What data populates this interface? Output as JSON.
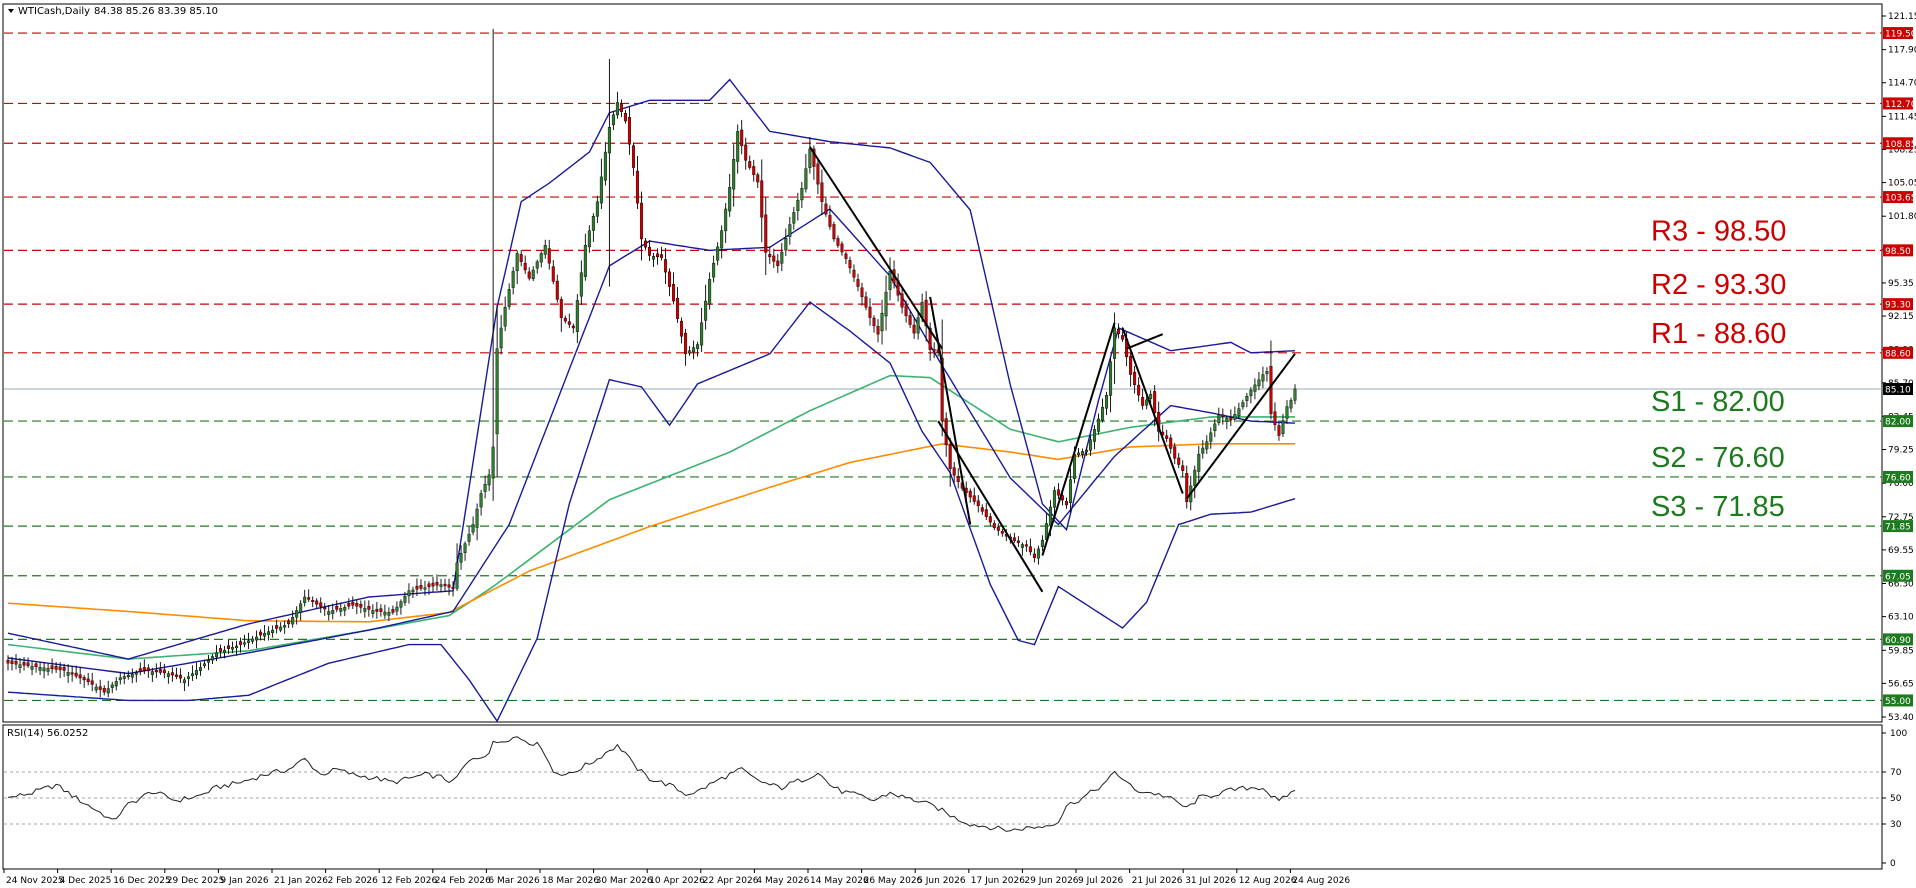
{
  "header": {
    "symbol": "WTICash,Daily",
    "ohlc": "84.38 85.26 83.39 85.10",
    "rsi_label": "RSI(14) 56.0252"
  },
  "colors": {
    "bull": "#2e7d2e",
    "bear": "#cc0000",
    "bollinger": "#1a1a99",
    "ma_green": "#3cb371",
    "ma_orange": "#ff8c00",
    "resistance": "#cc0000",
    "support": "#1e7a1e",
    "current": "#000000"
  },
  "chart_data": {
    "type": "candlestick",
    "ylim": [
      53.4,
      121.15
    ],
    "price_ticks": [
      "121.15",
      "117.90",
      "114.70",
      "111.45",
      "108.25",
      "105.05",
      "101.80",
      "98.55",
      "95.35",
      "92.15",
      "88.90",
      "85.70",
      "82.45",
      "79.25",
      "76.00",
      "72.75",
      "69.55",
      "66.30",
      "63.10",
      "59.85",
      "56.65",
      "53.40"
    ],
    "x_labels": [
      "24 Nov 2025",
      "4 Dec 2025",
      "16 Dec 2025",
      "29 Dec 2025",
      "9 Jan 2026",
      "21 Jan 2026",
      "2 Feb 2026",
      "12 Feb 2026",
      "24 Feb 2026",
      "6 Mar 2026",
      "18 Mar 2026",
      "30 Mar 2026",
      "10 Apr 2026",
      "22 Apr 2026",
      "4 May 2026",
      "14 May 2026",
      "26 May 2026",
      "5 Jun 2026",
      "17 Jun 2026",
      "29 Jun 2026",
      "9 Jul 2026",
      "21 Jul 2026",
      "31 Jul 2026",
      "12 Aug 2026",
      "24 Aug 2026"
    ],
    "current_price": "85.10",
    "levels": [
      {
        "price": 119.5,
        "label": "119.50",
        "kind": "resistance",
        "name": ""
      },
      {
        "price": 112.7,
        "label": "112.70",
        "kind": "resistance",
        "name": ""
      },
      {
        "price": 108.85,
        "label": "108.85",
        "kind": "resistance",
        "name": ""
      },
      {
        "price": 103.65,
        "label": "103.65",
        "kind": "resistance",
        "name": ""
      },
      {
        "price": 98.5,
        "label": "98.50",
        "kind": "resistance",
        "name": "R3 - 98.50"
      },
      {
        "price": 93.3,
        "label": "93.30",
        "kind": "resistance",
        "name": "R2 - 93.30"
      },
      {
        "price": 88.6,
        "label": "88.60",
        "kind": "resistance",
        "name": "R1 - 88.60"
      },
      {
        "price": 82.0,
        "label": "82.00",
        "kind": "support",
        "name": "S1 - 82.00"
      },
      {
        "price": 76.6,
        "label": "76.60",
        "kind": "support",
        "name": "S2 - 76.60"
      },
      {
        "price": 71.85,
        "label": "71.85",
        "kind": "support",
        "name": "S3 - 71.85"
      },
      {
        "price": 67.05,
        "label": "67.05",
        "kind": "support",
        "name": ""
      },
      {
        "price": 60.9,
        "label": "60.90",
        "kind": "support",
        "name": ""
      },
      {
        "price": 55.0,
        "label": "55.00",
        "kind": "support",
        "name": ""
      }
    ],
    "close_anchors": [
      [
        0,
        58.6
      ],
      [
        4,
        58.4
      ],
      [
        8,
        58.2
      ],
      [
        14,
        57.9
      ],
      [
        20,
        56.8
      ],
      [
        24,
        55.8
      ],
      [
        28,
        57.2
      ],
      [
        34,
        57.9
      ],
      [
        40,
        57.6
      ],
      [
        44,
        57.0
      ],
      [
        48,
        58.2
      ],
      [
        52,
        59.6
      ],
      [
        58,
        60.4
      ],
      [
        64,
        61.5
      ],
      [
        70,
        62.4
      ],
      [
        74,
        65.0
      ],
      [
        80,
        63.6
      ],
      [
        86,
        64.2
      ],
      [
        92,
        63.6
      ],
      [
        96,
        63.5
      ],
      [
        100,
        65.6
      ],
      [
        104,
        65.9
      ],
      [
        108,
        66.2
      ],
      [
        111,
        65.8
      ],
      [
        112,
        68.3
      ],
      [
        116,
        72.0
      ],
      [
        118,
        75.0
      ],
      [
        120,
        76.8
      ],
      [
        121,
        79.5
      ],
      [
        122,
        89.0
      ],
      [
        124,
        93.0
      ],
      [
        127,
        98.2
      ],
      [
        130,
        95.8
      ],
      [
        134,
        99.0
      ],
      [
        138,
        92.0
      ],
      [
        141,
        91.0
      ],
      [
        144,
        99.0
      ],
      [
        147,
        103.2
      ],
      [
        150,
        110.4
      ],
      [
        152,
        112.8
      ],
      [
        154,
        111.0
      ],
      [
        156,
        106.5
      ],
      [
        158,
        99.6
      ],
      [
        160,
        98.0
      ],
      [
        163,
        97.8
      ],
      [
        166,
        93.6
      ],
      [
        169,
        88.5
      ],
      [
        172,
        89.4
      ],
      [
        175,
        95.7
      ],
      [
        178,
        100.4
      ],
      [
        180,
        104.6
      ],
      [
        182,
        110.0
      ],
      [
        184,
        107.2
      ],
      [
        187,
        105.1
      ],
      [
        189,
        98.3
      ],
      [
        192,
        97.0
      ],
      [
        195,
        101.0
      ],
      [
        198,
        104.5
      ],
      [
        200,
        108.3
      ],
      [
        203,
        103.2
      ],
      [
        206,
        99.6
      ],
      [
        209,
        97.7
      ],
      [
        212,
        95.0
      ],
      [
        215,
        92.0
      ],
      [
        217,
        90.4
      ],
      [
        220,
        96.5
      ],
      [
        223,
        93.0
      ],
      [
        226,
        90.5
      ],
      [
        228,
        93.5
      ],
      [
        230,
        88.9
      ],
      [
        232,
        88.6
      ],
      [
        233,
        82.0
      ],
      [
        235,
        77.4
      ],
      [
        238,
        75.5
      ],
      [
        242,
        73.8
      ],
      [
        246,
        71.7
      ],
      [
        250,
        70.6
      ],
      [
        254,
        69.9
      ],
      [
        256,
        68.8
      ],
      [
        258,
        70.5
      ],
      [
        261,
        75.3
      ],
      [
        264,
        73.9
      ],
      [
        266,
        78.8
      ],
      [
        269,
        79.2
      ],
      [
        272,
        82.2
      ],
      [
        274,
        84.5
      ],
      [
        276,
        91.0
      ],
      [
        278,
        89.9
      ],
      [
        280,
        86.5
      ],
      [
        283,
        83.5
      ],
      [
        285,
        84.6
      ],
      [
        287,
        81.0
      ],
      [
        289,
        80.3
      ],
      [
        291,
        78.4
      ],
      [
        293,
        77.2
      ],
      [
        294,
        74.2
      ],
      [
        297,
        78.8
      ],
      [
        299,
        80.0
      ],
      [
        302,
        82.6
      ],
      [
        305,
        82.1
      ],
      [
        307,
        83.2
      ],
      [
        310,
        85.0
      ],
      [
        313,
        86.5
      ],
      [
        314,
        86.8
      ],
      [
        315,
        82.7
      ],
      [
        317,
        80.6
      ],
      [
        319,
        83.4
      ],
      [
        320,
        84.0
      ],
      [
        321,
        85.1
      ]
    ],
    "spikes": [
      [
        121,
        119.9,
        74.3
      ],
      [
        150,
        117.0,
        95.0
      ]
    ],
    "indicator_defs": [
      {
        "name": "ma_green",
        "anchors": [
          [
            0,
            60.4
          ],
          [
            30,
            59.0
          ],
          [
            60,
            59.8
          ],
          [
            90,
            61.8
          ],
          [
            110,
            63.2
          ],
          [
            121,
            66.0
          ],
          [
            150,
            74.4
          ],
          [
            180,
            79.0
          ],
          [
            200,
            83.0
          ],
          [
            220,
            86.4
          ],
          [
            230,
            86.2
          ],
          [
            250,
            81.2
          ],
          [
            262,
            80.0
          ],
          [
            280,
            81.4
          ],
          [
            300,
            82.4
          ],
          [
            321,
            82.4
          ]
        ]
      },
      {
        "name": "ma_orange",
        "anchors": [
          [
            0,
            64.4
          ],
          [
            30,
            63.6
          ],
          [
            60,
            62.7
          ],
          [
            90,
            62.6
          ],
          [
            110,
            63.5
          ],
          [
            130,
            67.5
          ],
          [
            160,
            71.8
          ],
          [
            190,
            75.6
          ],
          [
            210,
            78.0
          ],
          [
            233,
            79.8
          ],
          [
            250,
            79.0
          ],
          [
            262,
            78.3
          ],
          [
            280,
            79.5
          ],
          [
            300,
            79.8
          ],
          [
            321,
            79.8
          ]
        ]
      },
      {
        "name": "bb_mid",
        "anchors": [
          [
            0,
            59.1
          ],
          [
            30,
            57.6
          ],
          [
            60,
            59.6
          ],
          [
            90,
            61.8
          ],
          [
            111,
            63.6
          ],
          [
            125,
            72.0
          ],
          [
            140,
            87.0
          ],
          [
            150,
            97.0
          ],
          [
            160,
            99.4
          ],
          [
            175,
            98.5
          ],
          [
            190,
            98.8
          ],
          [
            205,
            102.5
          ],
          [
            220,
            96.0
          ],
          [
            232,
            88.0
          ],
          [
            250,
            76.5
          ],
          [
            262,
            72.0
          ],
          [
            276,
            78.6
          ],
          [
            290,
            83.5
          ],
          [
            300,
            82.8
          ],
          [
            310,
            82.0
          ],
          [
            321,
            81.8
          ]
        ]
      },
      {
        "name": "bb_up",
        "anchors": [
          [
            0,
            61.5
          ],
          [
            30,
            59.0
          ],
          [
            60,
            62.4
          ],
          [
            90,
            65.0
          ],
          [
            111,
            65.6
          ],
          [
            122,
            93.0
          ],
          [
            128,
            103.2
          ],
          [
            135,
            105.0
          ],
          [
            145,
            108.0
          ],
          [
            150,
            111.8
          ],
          [
            160,
            113.0
          ],
          [
            175,
            113.0
          ],
          [
            180,
            115.0
          ],
          [
            190,
            110.0
          ],
          [
            205,
            109.0
          ],
          [
            220,
            108.4
          ],
          [
            230,
            107.0
          ],
          [
            240,
            102.4
          ],
          [
            250,
            85.5
          ],
          [
            258,
            74.0
          ],
          [
            264,
            71.5
          ],
          [
            272,
            84.0
          ],
          [
            277,
            91.0
          ],
          [
            290,
            88.8
          ],
          [
            305,
            89.6
          ],
          [
            310,
            88.6
          ],
          [
            321,
            88.8
          ]
        ]
      },
      {
        "name": "bb_low",
        "anchors": [
          [
            0,
            55.8
          ],
          [
            30,
            55.0
          ],
          [
            45,
            55.0
          ],
          [
            60,
            55.5
          ],
          [
            80,
            58.6
          ],
          [
            100,
            60.4
          ],
          [
            108,
            60.4
          ],
          [
            115,
            57.0
          ],
          [
            122,
            53.0
          ],
          [
            132,
            61.0
          ],
          [
            140,
            74.0
          ],
          [
            150,
            86.0
          ],
          [
            158,
            85.3
          ],
          [
            165,
            81.6
          ],
          [
            172,
            85.6
          ],
          [
            190,
            88.5
          ],
          [
            200,
            93.5
          ],
          [
            210,
            90.7
          ],
          [
            220,
            87.6
          ],
          [
            228,
            81.0
          ],
          [
            235,
            77.0
          ],
          [
            245,
            66.2
          ],
          [
            252,
            60.8
          ],
          [
            256,
            60.4
          ],
          [
            262,
            66.0
          ],
          [
            270,
            64.0
          ],
          [
            278,
            62.0
          ],
          [
            284,
            64.5
          ],
          [
            292,
            72.0
          ],
          [
            300,
            73.0
          ],
          [
            310,
            73.2
          ],
          [
            321,
            74.5
          ]
        ]
      },
      {
        "name": "rsi",
        "anchors": [
          [
            0,
            50
          ],
          [
            6,
            54
          ],
          [
            12,
            60
          ],
          [
            18,
            48
          ],
          [
            24,
            37
          ],
          [
            26,
            32
          ],
          [
            30,
            45
          ],
          [
            36,
            55
          ],
          [
            42,
            48
          ],
          [
            48,
            52
          ],
          [
            52,
            58
          ],
          [
            58,
            62
          ],
          [
            64,
            68
          ],
          [
            70,
            72
          ],
          [
            74,
            80
          ],
          [
            78,
            68
          ],
          [
            82,
            72
          ],
          [
            86,
            68
          ],
          [
            92,
            65
          ],
          [
            96,
            62
          ],
          [
            100,
            65
          ],
          [
            104,
            68
          ],
          [
            108,
            66
          ],
          [
            111,
            62
          ],
          [
            114,
            75
          ],
          [
            116,
            80
          ],
          [
            118,
            82
          ],
          [
            120,
            85
          ],
          [
            121,
            92
          ],
          [
            124,
            95
          ],
          [
            127,
            97
          ],
          [
            130,
            93
          ],
          [
            133,
            90
          ],
          [
            136,
            70
          ],
          [
            140,
            68
          ],
          [
            144,
            75
          ],
          [
            147,
            80
          ],
          [
            150,
            87
          ],
          [
            152,
            90
          ],
          [
            154,
            85
          ],
          [
            156,
            75
          ],
          [
            160,
            65
          ],
          [
            165,
            60
          ],
          [
            169,
            53
          ],
          [
            172,
            55
          ],
          [
            176,
            62
          ],
          [
            180,
            68
          ],
          [
            183,
            72
          ],
          [
            186,
            65
          ],
          [
            190,
            60
          ],
          [
            193,
            58
          ],
          [
            196,
            62
          ],
          [
            199,
            65
          ],
          [
            202,
            70
          ],
          [
            205,
            60
          ],
          [
            208,
            55
          ],
          [
            212,
            52
          ],
          [
            216,
            48
          ],
          [
            220,
            54
          ],
          [
            224,
            50
          ],
          [
            228,
            47
          ],
          [
            232,
            42
          ],
          [
            236,
            35
          ],
          [
            240,
            30
          ],
          [
            246,
            27
          ],
          [
            250,
            25
          ],
          [
            254,
            27
          ],
          [
            258,
            28
          ],
          [
            262,
            32
          ],
          [
            264,
            44
          ],
          [
            268,
            50
          ],
          [
            272,
            58
          ],
          [
            274,
            62
          ],
          [
            276,
            70
          ],
          [
            278,
            65
          ],
          [
            281,
            56
          ],
          [
            285,
            54
          ],
          [
            288,
            52
          ],
          [
            291,
            48
          ],
          [
            294,
            42
          ],
          [
            297,
            50
          ],
          [
            300,
            52
          ],
          [
            305,
            56
          ],
          [
            310,
            58
          ],
          [
            313,
            58
          ],
          [
            315,
            52
          ],
          [
            317,
            47
          ],
          [
            319,
            52
          ],
          [
            321,
            56
          ]
        ]
      }
    ],
    "rsi_ticks": [
      "100",
      "70",
      "50",
      "30",
      "0"
    ]
  }
}
